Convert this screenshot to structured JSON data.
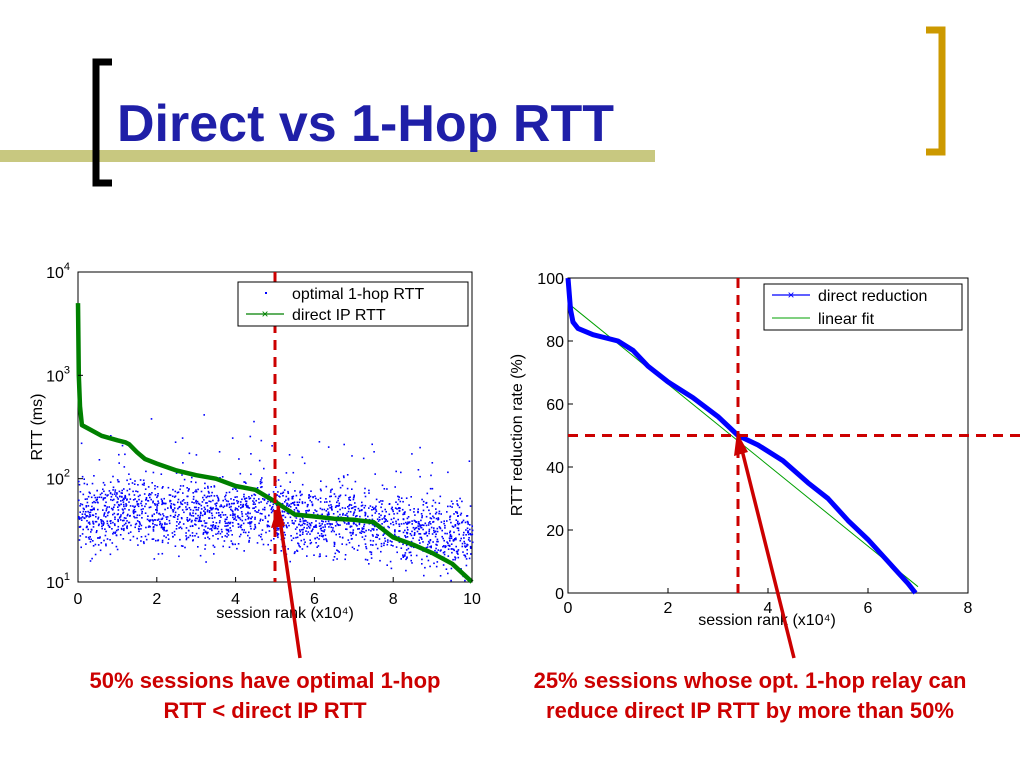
{
  "slide": {
    "title": "Direct vs 1-Hop RTT",
    "colors": {
      "title": "#1f1fa8",
      "accent_bar": "#c8c880",
      "left_bracket": "#000000",
      "right_bracket": "#cc9900",
      "annotation": "#cc0000"
    }
  },
  "captions": {
    "left": "50% sessions have optimal 1-hop RTT < direct IP RTT",
    "right": "25% sessions whose opt. 1-hop relay can reduce direct IP RTT by more than 50%"
  },
  "chart_data": [
    {
      "type": "scatter",
      "xlabel": "session rank (x10⁴)",
      "ylabel": "RTT (ms)",
      "xlim": [
        0,
        10
      ],
      "ylim": [
        10,
        10000
      ],
      "yscale": "log",
      "xticks": [
        "0",
        "2",
        "4",
        "6",
        "8",
        "10"
      ],
      "yticks": [
        {
          "base": "10",
          "exp": "1"
        },
        {
          "base": "10",
          "exp": "2"
        },
        {
          "base": "10",
          "exp": "3"
        },
        {
          "base": "10",
          "exp": "4"
        }
      ],
      "legend_position": "top-right",
      "series": [
        {
          "name": "optimal 1-hop RTT",
          "style": "dots",
          "color": "#0000ff",
          "typical_range": [
            20,
            80
          ],
          "values_sample": [
            [
              0,
              45
            ],
            [
              0.5,
              40
            ],
            [
              1,
              55
            ],
            [
              1.5,
              45
            ],
            [
              2,
              50
            ],
            [
              2.5,
              42
            ],
            [
              3,
              48
            ],
            [
              3.5,
              44
            ],
            [
              4,
              47
            ],
            [
              4.5,
              50
            ],
            [
              5,
              45
            ],
            [
              5.5,
              42
            ],
            [
              6,
              40
            ],
            [
              6.5,
              43
            ],
            [
              7,
              42
            ],
            [
              7.5,
              38
            ],
            [
              8,
              35
            ],
            [
              8.5,
              32
            ],
            [
              9,
              30
            ],
            [
              9.5,
              28
            ],
            [
              10,
              28
            ]
          ]
        },
        {
          "name": "direct IP RTT",
          "style": "line-x",
          "color": "#008000",
          "values": [
            [
              0,
              5000
            ],
            [
              0.02,
              1000
            ],
            [
              0.05,
              500
            ],
            [
              0.1,
              330
            ],
            [
              0.3,
              300
            ],
            [
              0.6,
              260
            ],
            [
              1.0,
              235
            ],
            [
              1.2,
              225
            ],
            [
              1.3,
              215
            ],
            [
              1.5,
              180
            ],
            [
              1.7,
              155
            ],
            [
              2.0,
              140
            ],
            [
              2.5,
              120
            ],
            [
              3.0,
              108
            ],
            [
              3.5,
              100
            ],
            [
              4.0,
              85
            ],
            [
              4.5,
              78
            ],
            [
              5.0,
              60
            ],
            [
              5.5,
              45
            ],
            [
              6.0,
              43
            ],
            [
              6.5,
              41
            ],
            [
              7.0,
              40
            ],
            [
              7.5,
              38
            ],
            [
              8.0,
              27
            ],
            [
              8.5,
              23
            ],
            [
              9.0,
              19
            ],
            [
              9.5,
              15
            ],
            [
              10.0,
              10
            ]
          ]
        }
      ],
      "annotations": [
        {
          "type": "vline",
          "x": 5,
          "style": "dashed",
          "color": "#cc0000"
        }
      ]
    },
    {
      "type": "line",
      "xlabel": "session rank (x10⁴)",
      "ylabel": "RTT reduction rate (%)",
      "xlim": [
        0,
        8
      ],
      "ylim": [
        0,
        100
      ],
      "xticks": [
        "0",
        "2",
        "4",
        "6",
        "8"
      ],
      "yticks": [
        "0",
        "20",
        "40",
        "60",
        "80",
        "100"
      ],
      "legend_position": "top-right",
      "series": [
        {
          "name": "direct reduction",
          "style": "line-x",
          "color": "#0000ff",
          "values": [
            [
              0,
              100
            ],
            [
              0.05,
              90
            ],
            [
              0.1,
              86
            ],
            [
              0.2,
              84
            ],
            [
              0.5,
              82
            ],
            [
              1.0,
              80
            ],
            [
              1.3,
              77
            ],
            [
              1.6,
              72
            ],
            [
              2.0,
              67
            ],
            [
              2.5,
              62
            ],
            [
              3.0,
              56
            ],
            [
              3.4,
              50
            ],
            [
              3.8,
              47
            ],
            [
              4.3,
              42
            ],
            [
              4.8,
              35
            ],
            [
              5.2,
              30
            ],
            [
              5.6,
              23
            ],
            [
              6.0,
              17
            ],
            [
              6.4,
              10
            ],
            [
              6.8,
              3
            ],
            [
              6.95,
              0
            ]
          ]
        },
        {
          "name": "linear fit",
          "style": "line",
          "color": "#00a000",
          "values": [
            [
              0,
              92
            ],
            [
              7.0,
              2
            ]
          ]
        }
      ],
      "annotations": [
        {
          "type": "vline",
          "x": 3.4,
          "style": "dashed",
          "color": "#cc0000"
        },
        {
          "type": "hline",
          "y": 50,
          "style": "dashed",
          "color": "#cc0000"
        }
      ]
    }
  ]
}
